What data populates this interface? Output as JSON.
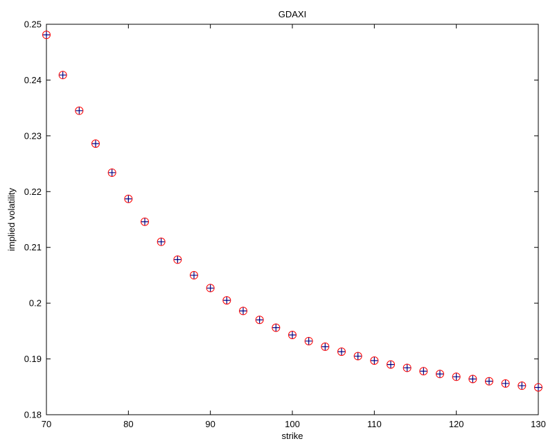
{
  "chart_data": {
    "type": "scatter",
    "title": "GDAXI",
    "xlabel": "strike",
    "ylabel": "implied volatility",
    "xlim": [
      70,
      130
    ],
    "ylim": [
      0.18,
      0.25
    ],
    "xticks": [
      70,
      80,
      90,
      100,
      110,
      120,
      130
    ],
    "yticks": [
      0.18,
      0.19,
      0.2,
      0.21,
      0.22,
      0.23,
      0.24,
      0.25
    ],
    "xtick_labels": [
      "70",
      "80",
      "90",
      "100",
      "110",
      "120",
      "130"
    ],
    "ytick_labels": [
      "0.18",
      "0.19",
      "0.2",
      "0.21",
      "0.22",
      "0.23",
      "0.24",
      "0.25"
    ],
    "grid": false,
    "legend": "none",
    "series": [
      {
        "marker": "circle",
        "color": "#ff0000",
        "x": [
          70,
          72,
          74,
          76,
          78,
          80,
          82,
          84,
          86,
          88,
          90,
          92,
          94,
          96,
          98,
          100,
          102,
          104,
          106,
          108,
          110,
          112,
          114,
          116,
          118,
          120,
          122,
          124,
          126,
          128,
          130
        ],
        "y": [
          0.2481,
          0.2409,
          0.2345,
          0.2286,
          0.2234,
          0.2187,
          0.2146,
          0.211,
          0.2078,
          0.205,
          0.2027,
          0.2005,
          0.1986,
          0.197,
          0.1956,
          0.1943,
          0.1932,
          0.1922,
          0.1913,
          0.1905,
          0.1897,
          0.189,
          0.1884,
          0.1878,
          0.1873,
          0.1868,
          0.1864,
          0.186,
          0.1856,
          0.1852,
          0.1849
        ]
      },
      {
        "marker": "plus",
        "color": "#000080",
        "x": [
          70,
          72,
          74,
          76,
          78,
          80,
          82,
          84,
          86,
          88,
          90,
          92,
          94,
          96,
          98,
          100,
          102,
          104,
          106,
          108,
          110,
          112,
          114,
          116,
          118,
          120,
          122,
          124,
          126,
          128,
          130
        ],
        "y": [
          0.2481,
          0.2409,
          0.2345,
          0.2286,
          0.2234,
          0.2187,
          0.2146,
          0.211,
          0.2078,
          0.205,
          0.2027,
          0.2005,
          0.1986,
          0.197,
          0.1956,
          0.1943,
          0.1932,
          0.1922,
          0.1913,
          0.1905,
          0.1897,
          0.189,
          0.1884,
          0.1878,
          0.1873,
          0.1868,
          0.1864,
          0.186,
          0.1856,
          0.1852,
          0.1849
        ]
      }
    ]
  }
}
